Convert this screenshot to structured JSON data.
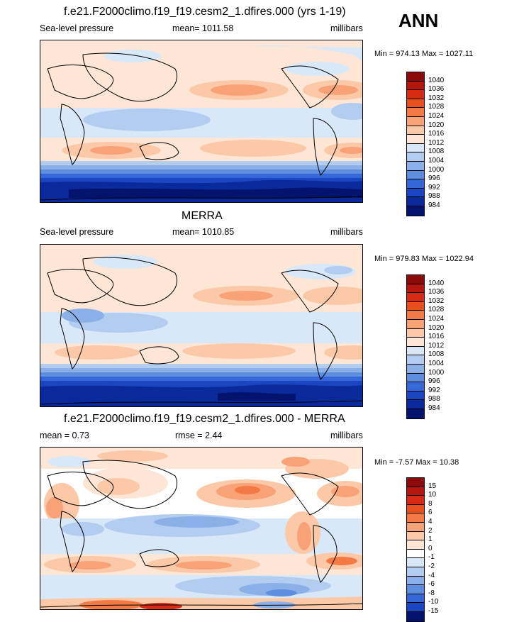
{
  "season": "ANN",
  "panels": [
    {
      "title": "f.e21.F2000climo.f19_f19.cesm2_1.dfires.000 (yrs 1-19)",
      "left_label": "Sea-level pressure",
      "center_label": "mean= 1011.58",
      "right_label": "millibars",
      "minmax": "Min = 974.13 Max = 1027.11",
      "colorbar_labels": [
        "1040",
        "1036",
        "1032",
        "1028",
        "1024",
        "1020",
        "1016",
        "1012",
        "1008",
        "1004",
        "1000",
        "996",
        "992",
        "988",
        "984"
      ]
    },
    {
      "title": "MERRA",
      "left_label": "Sea-level pressure",
      "center_label": "mean= 1010.85",
      "right_label": "millibars",
      "minmax": "Min = 979.83 Max = 1022.94",
      "colorbar_labels": [
        "1040",
        "1036",
        "1032",
        "1028",
        "1024",
        "1020",
        "1016",
        "1012",
        "1008",
        "1004",
        "1000",
        "996",
        "992",
        "988",
        "984"
      ]
    },
    {
      "title": "f.e21.F2000climo.f19_f19.cesm2_1.dfires.000 - MERRA",
      "left_label": "mean =   0.73",
      "center_label": "rmse =   2.44",
      "right_label": "millibars",
      "minmax": "Min =  -7.57 Max =  10.38",
      "colorbar_labels": [
        "15",
        "10",
        "8",
        "6",
        "4",
        "2",
        "1",
        "0",
        "-1",
        "-2",
        "-4",
        "-6",
        "-8",
        "-10",
        "-15"
      ]
    }
  ],
  "colors": {
    "abs_scale": [
      "#8b0a0a",
      "#b5170f",
      "#d62b15",
      "#e8501f",
      "#f47a45",
      "#f9a278",
      "#fcc9a8",
      "#fde6d6",
      "#d9e8f8",
      "#b3cdf1",
      "#8bb0e8",
      "#5e8fdf",
      "#3567d8",
      "#1a46c2",
      "#0a2a9c",
      "#04146e"
    ],
    "diff_scale": [
      "#8b0a0a",
      "#b5170f",
      "#d62b15",
      "#e8501f",
      "#f47a45",
      "#f9a278",
      "#fcc9a8",
      "#fde6d6",
      "#ffffff",
      "#d9e8f8",
      "#b3cdf1",
      "#8bb0e8",
      "#5e8fdf",
      "#3567d8",
      "#1a46c2",
      "#04146e"
    ]
  }
}
